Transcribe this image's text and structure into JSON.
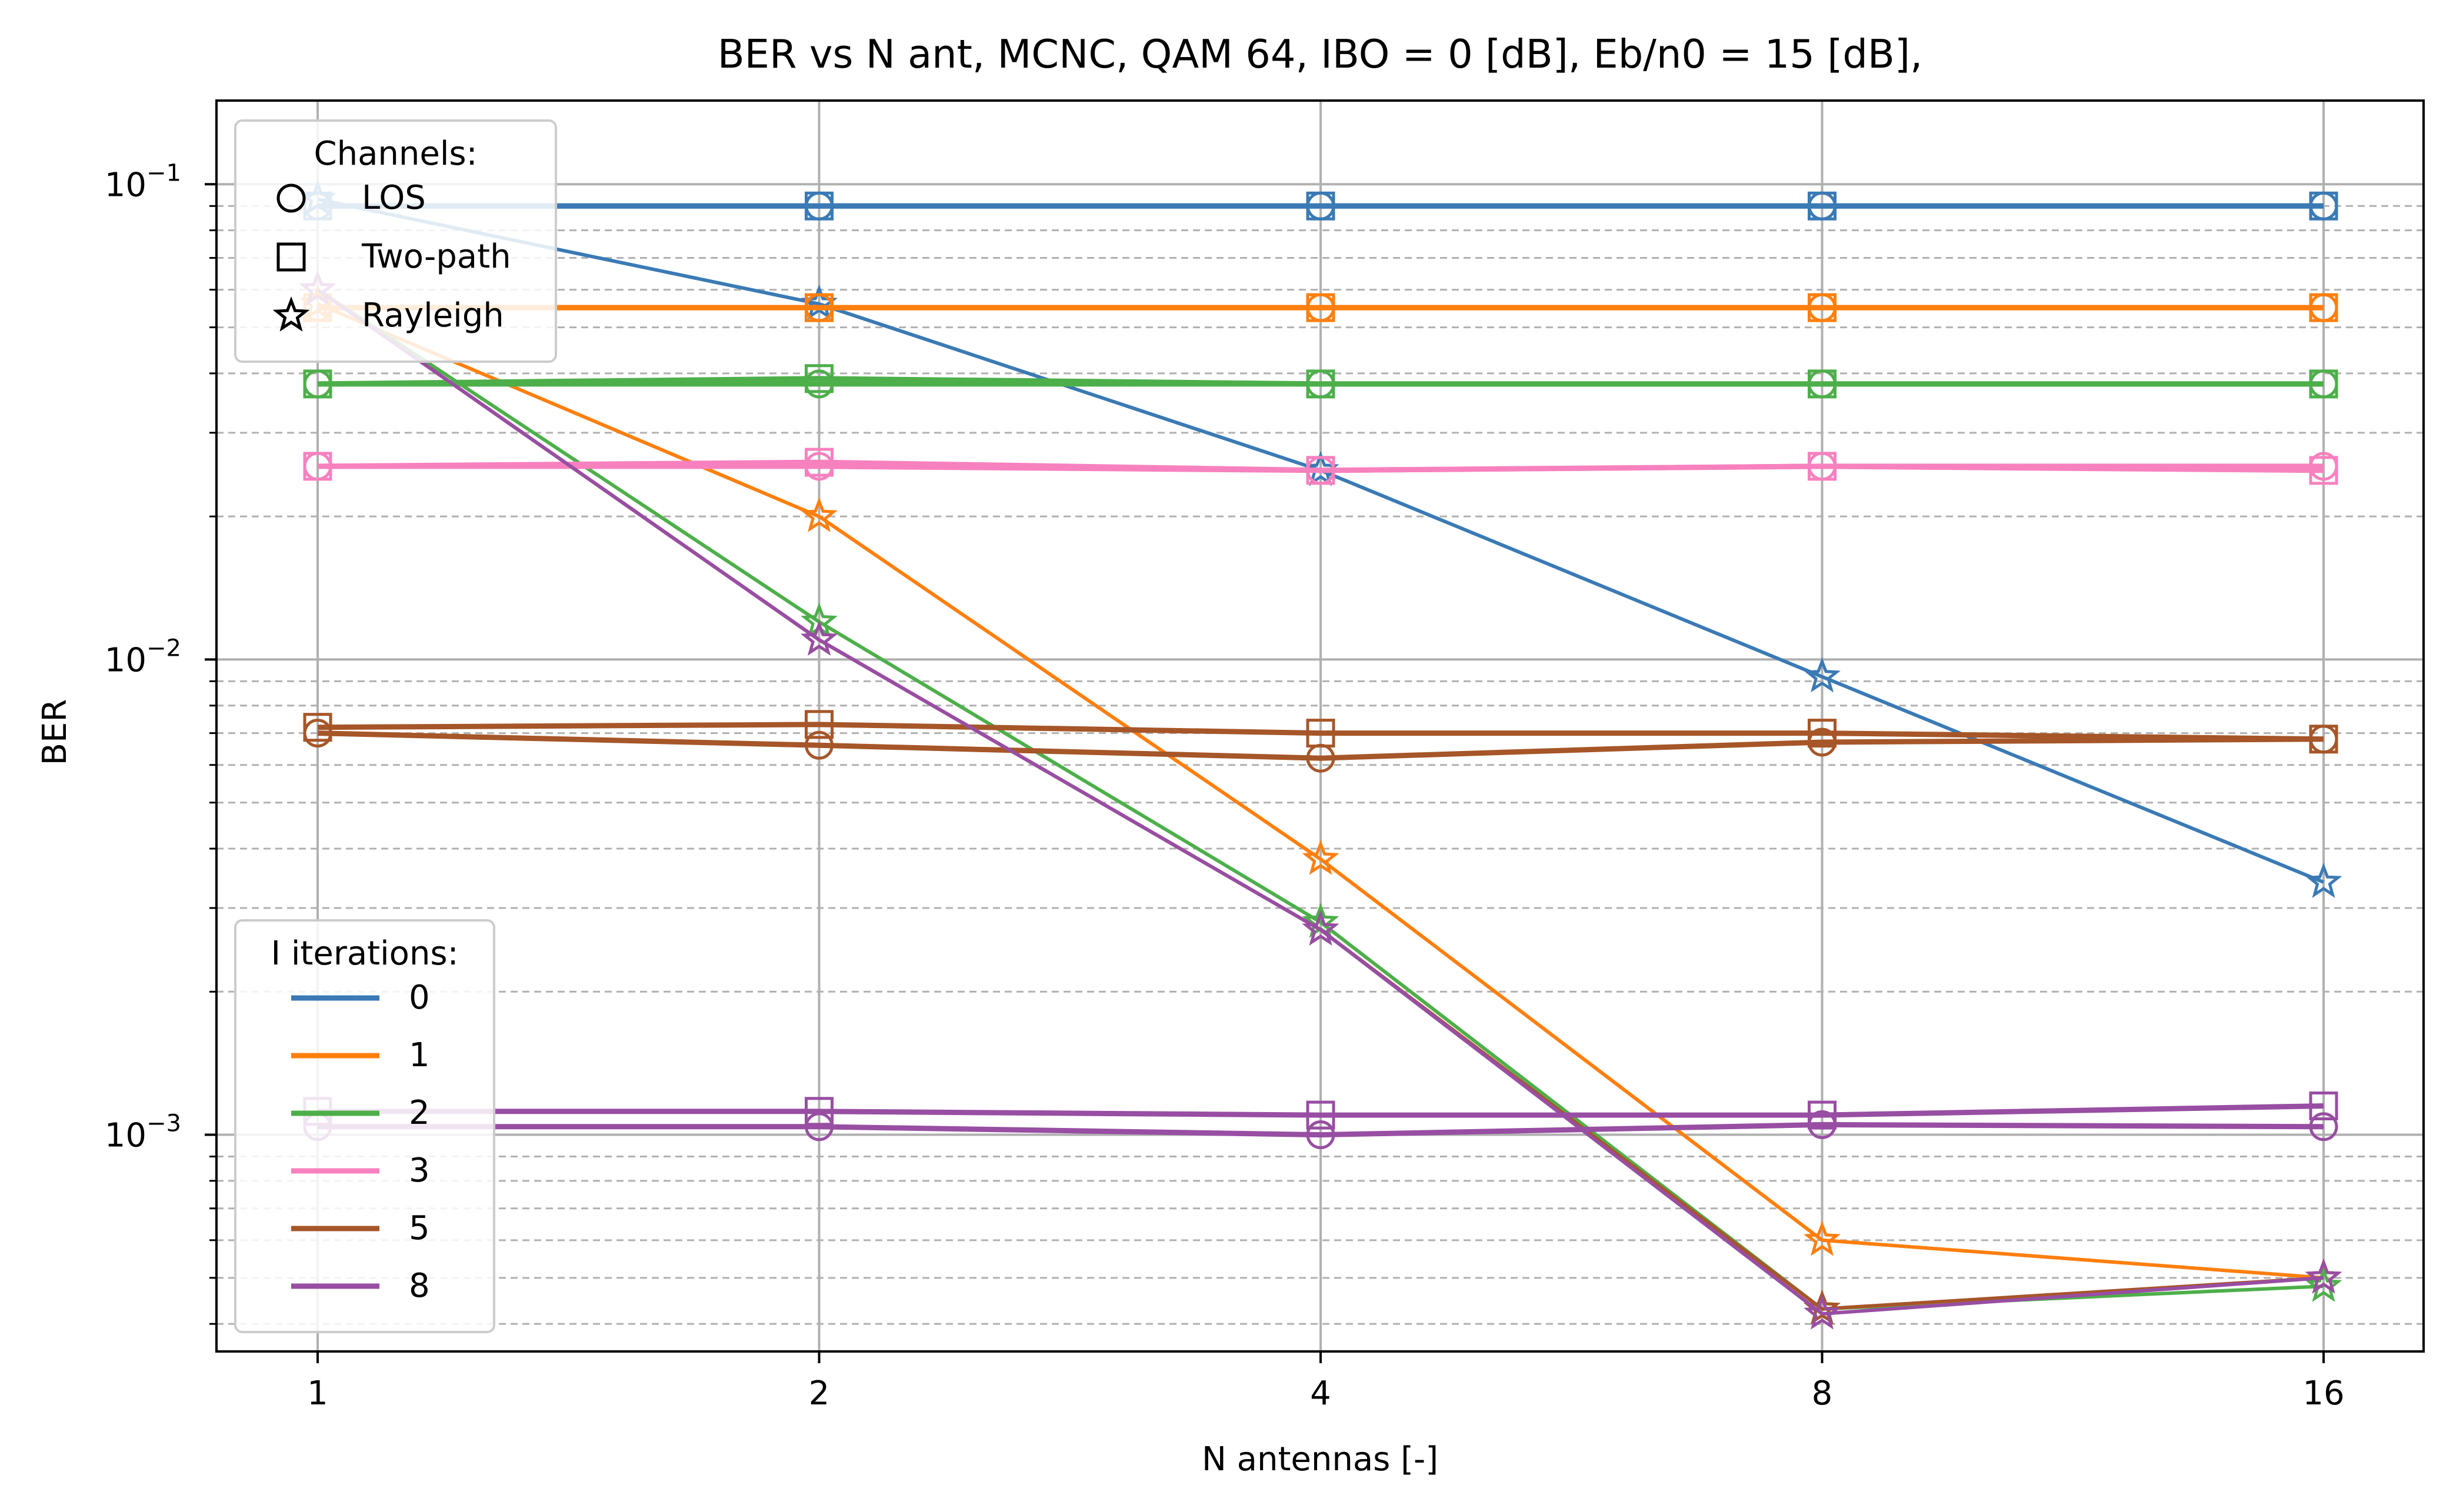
{
  "chart_data": {
    "type": "line",
    "title": "BER vs N ant, MCNC, QAM 64, IBO = 0 [dB], Eb/n0 = 15 [dB],",
    "xlabel": "N antennas [-]",
    "ylabel": "BER",
    "x": [
      1,
      2,
      4,
      8,
      16
    ],
    "x_ticks": [
      "1",
      "2",
      "4",
      "8",
      "16"
    ],
    "x_scale": "log2",
    "y_scale": "log",
    "ylim": [
      0.00035,
      0.15
    ],
    "y_ticks": [
      {
        "value": 0.1,
        "base": "10",
        "exp": "−1"
      },
      {
        "value": 0.01,
        "base": "10",
        "exp": "−2"
      },
      {
        "value": 0.001,
        "base": "10",
        "exp": "−3"
      }
    ],
    "grid": true,
    "legend_channels": {
      "title": "Channels:",
      "location": "upper-left",
      "entries": [
        {
          "label": "LOS",
          "marker": "circle"
        },
        {
          "label": "Two-path",
          "marker": "square"
        },
        {
          "label": "Rayleigh",
          "marker": "star"
        }
      ]
    },
    "legend_iterations": {
      "title": "I iterations:",
      "location": "lower-left",
      "entries": [
        {
          "label": "0",
          "color": "#3a7ab5"
        },
        {
          "label": "1",
          "color": "#ff7f0e"
        },
        {
          "label": "2",
          "color": "#4daf4a"
        },
        {
          "label": "3",
          "color": "#f781bf"
        },
        {
          "label": "5",
          "color": "#a65628"
        },
        {
          "label": "8",
          "color": "#984ea3"
        }
      ]
    },
    "series": [
      {
        "iterations": "0",
        "channel": "LOS",
        "color": "#3a7ab5",
        "marker": "circle",
        "values": [
          0.09,
          0.09,
          0.09,
          0.09,
          0.09
        ]
      },
      {
        "iterations": "0",
        "channel": "Two-path",
        "color": "#3a7ab5",
        "marker": "square",
        "values": [
          0.09,
          0.09,
          0.09,
          0.09,
          0.09
        ]
      },
      {
        "iterations": "0",
        "channel": "Rayleigh",
        "color": "#3a7ab5",
        "marker": "star",
        "values": [
          0.093,
          0.056,
          0.025,
          0.0092,
          0.0034
        ]
      },
      {
        "iterations": "1",
        "channel": "LOS",
        "color": "#ff7f0e",
        "marker": "circle",
        "values": [
          0.055,
          0.055,
          0.055,
          0.055,
          0.055
        ]
      },
      {
        "iterations": "1",
        "channel": "Two-path",
        "color": "#ff7f0e",
        "marker": "square",
        "values": [
          0.055,
          0.055,
          0.055,
          0.055,
          0.055
        ]
      },
      {
        "iterations": "1",
        "channel": "Rayleigh",
        "color": "#ff7f0e",
        "marker": "star",
        "values": [
          0.056,
          0.02,
          0.0038,
          0.0006,
          0.0005
        ]
      },
      {
        "iterations": "2",
        "channel": "LOS",
        "color": "#4daf4a",
        "marker": "circle",
        "values": [
          0.038,
          0.038,
          0.038,
          0.038,
          0.038
        ]
      },
      {
        "iterations": "2",
        "channel": "Two-path",
        "color": "#4daf4a",
        "marker": "square",
        "values": [
          0.038,
          0.039,
          0.038,
          0.038,
          0.038
        ]
      },
      {
        "iterations": "2",
        "channel": "Rayleigh",
        "color": "#4daf4a",
        "marker": "star",
        "values": [
          0.06,
          0.012,
          0.0028,
          0.00043,
          0.00048
        ]
      },
      {
        "iterations": "3",
        "channel": "LOS",
        "color": "#f781bf",
        "marker": "circle",
        "values": [
          0.0255,
          0.0255,
          0.025,
          0.0255,
          0.0255
        ]
      },
      {
        "iterations": "3",
        "channel": "Two-path",
        "color": "#f781bf",
        "marker": "square",
        "values": [
          0.0255,
          0.026,
          0.025,
          0.0255,
          0.025
        ]
      },
      {
        "iterations": "3",
        "channel": "Rayleigh",
        "color": "#f781bf",
        "marker": "star",
        "values": [
          0.06,
          0.011,
          0.0027,
          0.00043,
          0.0005
        ]
      },
      {
        "iterations": "5",
        "channel": "LOS",
        "color": "#a65628",
        "marker": "circle",
        "values": [
          0.007,
          0.0066,
          0.0062,
          0.0067,
          0.0068
        ]
      },
      {
        "iterations": "5",
        "channel": "Two-path",
        "color": "#a65628",
        "marker": "square",
        "values": [
          0.0072,
          0.0073,
          0.007,
          0.007,
          0.0068
        ]
      },
      {
        "iterations": "5",
        "channel": "Rayleigh",
        "color": "#a65628",
        "marker": "star",
        "values": [
          0.06,
          0.011,
          0.0027,
          0.00043,
          0.0005
        ]
      },
      {
        "iterations": "8",
        "channel": "LOS",
        "color": "#984ea3",
        "marker": "circle",
        "values": [
          0.00104,
          0.00104,
          0.001,
          0.00105,
          0.00104
        ]
      },
      {
        "iterations": "8",
        "channel": "Two-path",
        "color": "#984ea3",
        "marker": "square",
        "values": [
          0.00112,
          0.00112,
          0.0011,
          0.0011,
          0.00115
        ]
      },
      {
        "iterations": "8",
        "channel": "Rayleigh",
        "color": "#984ea3",
        "marker": "star",
        "values": [
          0.06,
          0.011,
          0.0027,
          0.00042,
          0.0005
        ]
      }
    ]
  }
}
